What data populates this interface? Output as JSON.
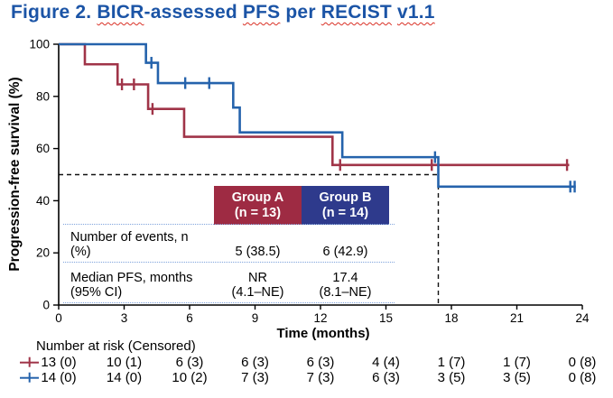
{
  "figure_title": {
    "parts": [
      {
        "text": "Figure 2. ",
        "wavy": false
      },
      {
        "text": "BICR",
        "wavy": true
      },
      {
        "text": "-assessed ",
        "wavy": false
      },
      {
        "text": "PFS",
        "wavy": true
      },
      {
        "text": " per ",
        "wavy": false
      },
      {
        "text": "RECIST",
        "wavy": true
      },
      {
        "text": " ",
        "wavy": false
      },
      {
        "text": "v1.1",
        "wavy": true
      }
    ],
    "color": "#1B54A6"
  },
  "chart_data": {
    "type": "line",
    "subtype": "kaplan-meier-step",
    "title": "Figure 2. BICR-assessed PFS per RECIST v1.1",
    "xlabel": "Time (months)",
    "ylabel": "Progression-free survival (%)",
    "xlim": [
      0,
      24
    ],
    "ylim": [
      0,
      100
    ],
    "x_ticks": [
      0,
      3,
      6,
      9,
      12,
      15,
      18,
      21,
      24
    ],
    "y_ticks": [
      0,
      20,
      40,
      60,
      80,
      100
    ],
    "grid": false,
    "median_marker": {
      "x_months": 17.4,
      "y_percent": 50,
      "style": "dashed",
      "color": "#111111"
    },
    "series": [
      {
        "name": "Group A",
        "n": 13,
        "color": "#A03448",
        "start": [
          0,
          100
        ],
        "drops": [
          [
            1.2,
            92.3
          ],
          [
            2.7,
            84.6
          ],
          [
            4.1,
            75.2
          ],
          [
            5.75,
            64.5
          ],
          [
            12.55,
            53.7
          ]
        ],
        "end_month": 23.4,
        "censors": [
          [
            2.9,
            84.6
          ],
          [
            3.45,
            84.6
          ],
          [
            4.3,
            75.2
          ],
          [
            12.9,
            53.7
          ],
          [
            17.1,
            53.7
          ],
          [
            23.3,
            53.7
          ]
        ]
      },
      {
        "name": "Group B",
        "n": 14,
        "color": "#2563AC",
        "start": [
          0,
          100
        ],
        "drops": [
          [
            4.0,
            92.9
          ],
          [
            4.55,
            85.1
          ],
          [
            8.0,
            75.7
          ],
          [
            8.3,
            66.2
          ],
          [
            13.0,
            56.7
          ],
          [
            17.4,
            45.4
          ]
        ],
        "end_month": 23.7,
        "censors": [
          [
            4.25,
            92.9
          ],
          [
            5.8,
            85.1
          ],
          [
            6.9,
            85.1
          ],
          [
            17.25,
            56.7
          ],
          [
            23.45,
            45.4
          ],
          [
            23.65,
            45.4
          ]
        ]
      }
    ]
  },
  "summary_table": {
    "headers": [
      {
        "line1": "Group A",
        "line2": "(n = 13)",
        "bg": "#9E2B43"
      },
      {
        "line1": "Group B",
        "line2": "(n = 14)",
        "bg": "#2E3A8C"
      }
    ],
    "rows": [
      {
        "label1": "Number of events, n",
        "label2": "(%)",
        "a1": "",
        "a2": "5 (38.5)",
        "b1": "",
        "b2": "6 (42.9)"
      },
      {
        "label1": "Median PFS, months",
        "label2": "(95% CI)",
        "a1": "NR",
        "a2": "(4.1–NE)",
        "b1": "17.4",
        "b2": "(8.1–NE)"
      }
    ]
  },
  "risk_table": {
    "label": "Number at risk (Censored)",
    "rows": [
      {
        "group": "Group A",
        "color": "#A03448",
        "values": [
          "13 (0)",
          "10 (1)",
          "6 (3)",
          "6 (3)",
          "6 (3)",
          "4 (4)",
          "1 (7)",
          "1 (7)",
          "0 (8)"
        ]
      },
      {
        "group": "Group B",
        "color": "#2563AC",
        "values": [
          "14 (0)",
          "14 (0)",
          "10 (2)",
          "7 (3)",
          "7 (3)",
          "6 (3)",
          "3 (5)",
          "3 (5)",
          "0 (8)"
        ]
      }
    ]
  }
}
